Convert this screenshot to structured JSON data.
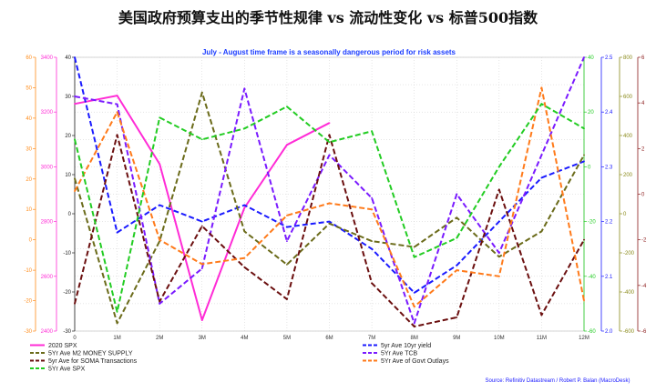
{
  "title": "美国政府预算支出的季节性规律 vs 流动性变化 vs 标普500指数",
  "chart_data": {
    "type": "line",
    "subtitle": "July - August time frame is a seasonally dangerous period for risk assets",
    "source": "Source: Refinitiv Datastream / Robert P. Balan (MacroDesk)",
    "categories": [
      "0",
      "1M",
      "2M",
      "3M",
      "4M",
      "5M",
      "6M",
      "7M",
      "8M",
      "9M",
      "10M",
      "11M",
      "12M"
    ],
    "grid": true,
    "legend_placement": "bottom",
    "axes": {
      "outer_left": {
        "color": "#ff8c1a",
        "ticks": [
          "-30",
          "-20",
          "-10",
          "0",
          "10",
          "20",
          "30",
          "40",
          "50",
          "60"
        ],
        "ylim": [
          -30,
          60
        ]
      },
      "left": {
        "color": "#ff2bd6",
        "ticks": [
          "2400",
          "2600",
          "2800",
          "3000",
          "3200",
          "3400"
        ],
        "ylim": [
          2400,
          3400
        ]
      },
      "inner_left": {
        "color": "#222222",
        "ticks": [
          "-30",
          "-20",
          "-10",
          "0",
          "10",
          "20",
          "30",
          "40"
        ],
        "ylim": [
          -30,
          40
        ]
      },
      "inner_right": {
        "color": "#22cc22",
        "ticks": [
          "-60",
          "-40",
          "-20",
          "0",
          "20",
          "40"
        ],
        "ylim": [
          -60,
          40
        ]
      },
      "right": {
        "color": "#1a1aff",
        "ticks": [
          "2.0",
          "2.1",
          "2.2",
          "2.3",
          "2.4",
          "2.5"
        ],
        "ylim": [
          2.0,
          2.5
        ]
      },
      "far_right": {
        "color": "#8a8a1a",
        "ticks": [
          "-600",
          "-400",
          "-200",
          "0",
          "200",
          "400",
          "600",
          "800"
        ],
        "ylim": [
          -600,
          800
        ]
      },
      "outer_right": {
        "color": "#8b1a1a",
        "ticks": [
          "-6",
          "-4",
          "-2",
          "0",
          "2",
          "4",
          "6"
        ],
        "ylim": [
          -6,
          6
        ]
      }
    },
    "series": [
      {
        "name": "2020 SPX",
        "color": "#ff2bd6",
        "dash": "solid",
        "axis": "left",
        "values": [
          3230,
          3260,
          3010,
          2440,
          2850,
          3080,
          3160,
          null,
          null,
          null,
          null,
          null,
          null
        ]
      },
      {
        "name": "5yr Ave 10yr yield",
        "color": "#1a1aff",
        "dash": "dash",
        "axis": "right",
        "values": [
          2.5,
          2.18,
          2.23,
          2.2,
          2.23,
          2.19,
          2.2,
          2.15,
          2.07,
          2.12,
          2.2,
          2.28,
          2.31
        ]
      },
      {
        "name": "5Yr Ave M2 MONEY SUPPLY",
        "color": "#6b6b1a",
        "dash": "dash",
        "axis": "far_right",
        "values": [
          180,
          -560,
          -140,
          620,
          -90,
          -260,
          -50,
          -140,
          -170,
          -20,
          -220,
          -90,
          300
        ]
      },
      {
        "name": "5Yr Ave TCB",
        "color": "#7a1aff",
        "dash": "dash",
        "axis": "inner_left",
        "values": [
          30,
          28,
          -23,
          -14,
          32,
          -7,
          15,
          4,
          -28,
          5,
          -10,
          15,
          40
        ]
      },
      {
        "name": "5yr Ave for SOMA Transactions",
        "color": "#6b0f0f",
        "dash": "dash",
        "axis": "outer_right",
        "values": [
          -4.8,
          2.6,
          -4.7,
          -1.4,
          -3.2,
          -4.6,
          2.6,
          -3.9,
          -5.8,
          -5.4,
          0.2,
          -5.3,
          -2.0
        ]
      },
      {
        "name": "5Yr Ave of Govt Outlays",
        "color": "#ff7a1a",
        "dash": "dash",
        "axis": "outer_left",
        "values": [
          16,
          42,
          0,
          -8,
          -6,
          8,
          12,
          10,
          -22,
          -10,
          -12,
          50,
          -20
        ]
      },
      {
        "name": "5Yr Ave SPX",
        "color": "#22cc22",
        "dash": "dash",
        "axis": "inner_right",
        "values": [
          10,
          -53,
          18,
          10,
          14,
          22,
          9,
          13,
          -33,
          -26,
          0,
          23,
          14
        ]
      }
    ]
  }
}
